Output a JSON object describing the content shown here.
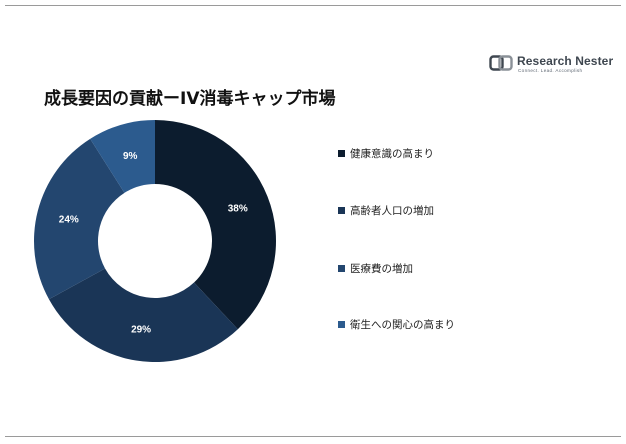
{
  "title": "成長要因の貢献ーIV消毒キャップ市場",
  "logo": {
    "name": "Research Nester",
    "tagline": "Connect. Lead. Accomplish"
  },
  "colors": {
    "dark": "#0c1c2e",
    "navy": "#1a3556",
    "mid": "#23466f",
    "blue": "#2c5b8e"
  },
  "chart_data": {
    "type": "pie",
    "donut": true,
    "categories": [
      "健康意識の高まり",
      "高齢者人口の増加",
      "医療費の増加",
      "衛生への関心の高まり"
    ],
    "values": [
      38,
      29,
      24,
      9
    ],
    "value_labels": [
      "38%",
      "29%",
      "24%",
      "9%"
    ],
    "colors": [
      "#0c1c2e",
      "#1a3556",
      "#23466f",
      "#2c5b8e"
    ],
    "legend_position": "right"
  }
}
